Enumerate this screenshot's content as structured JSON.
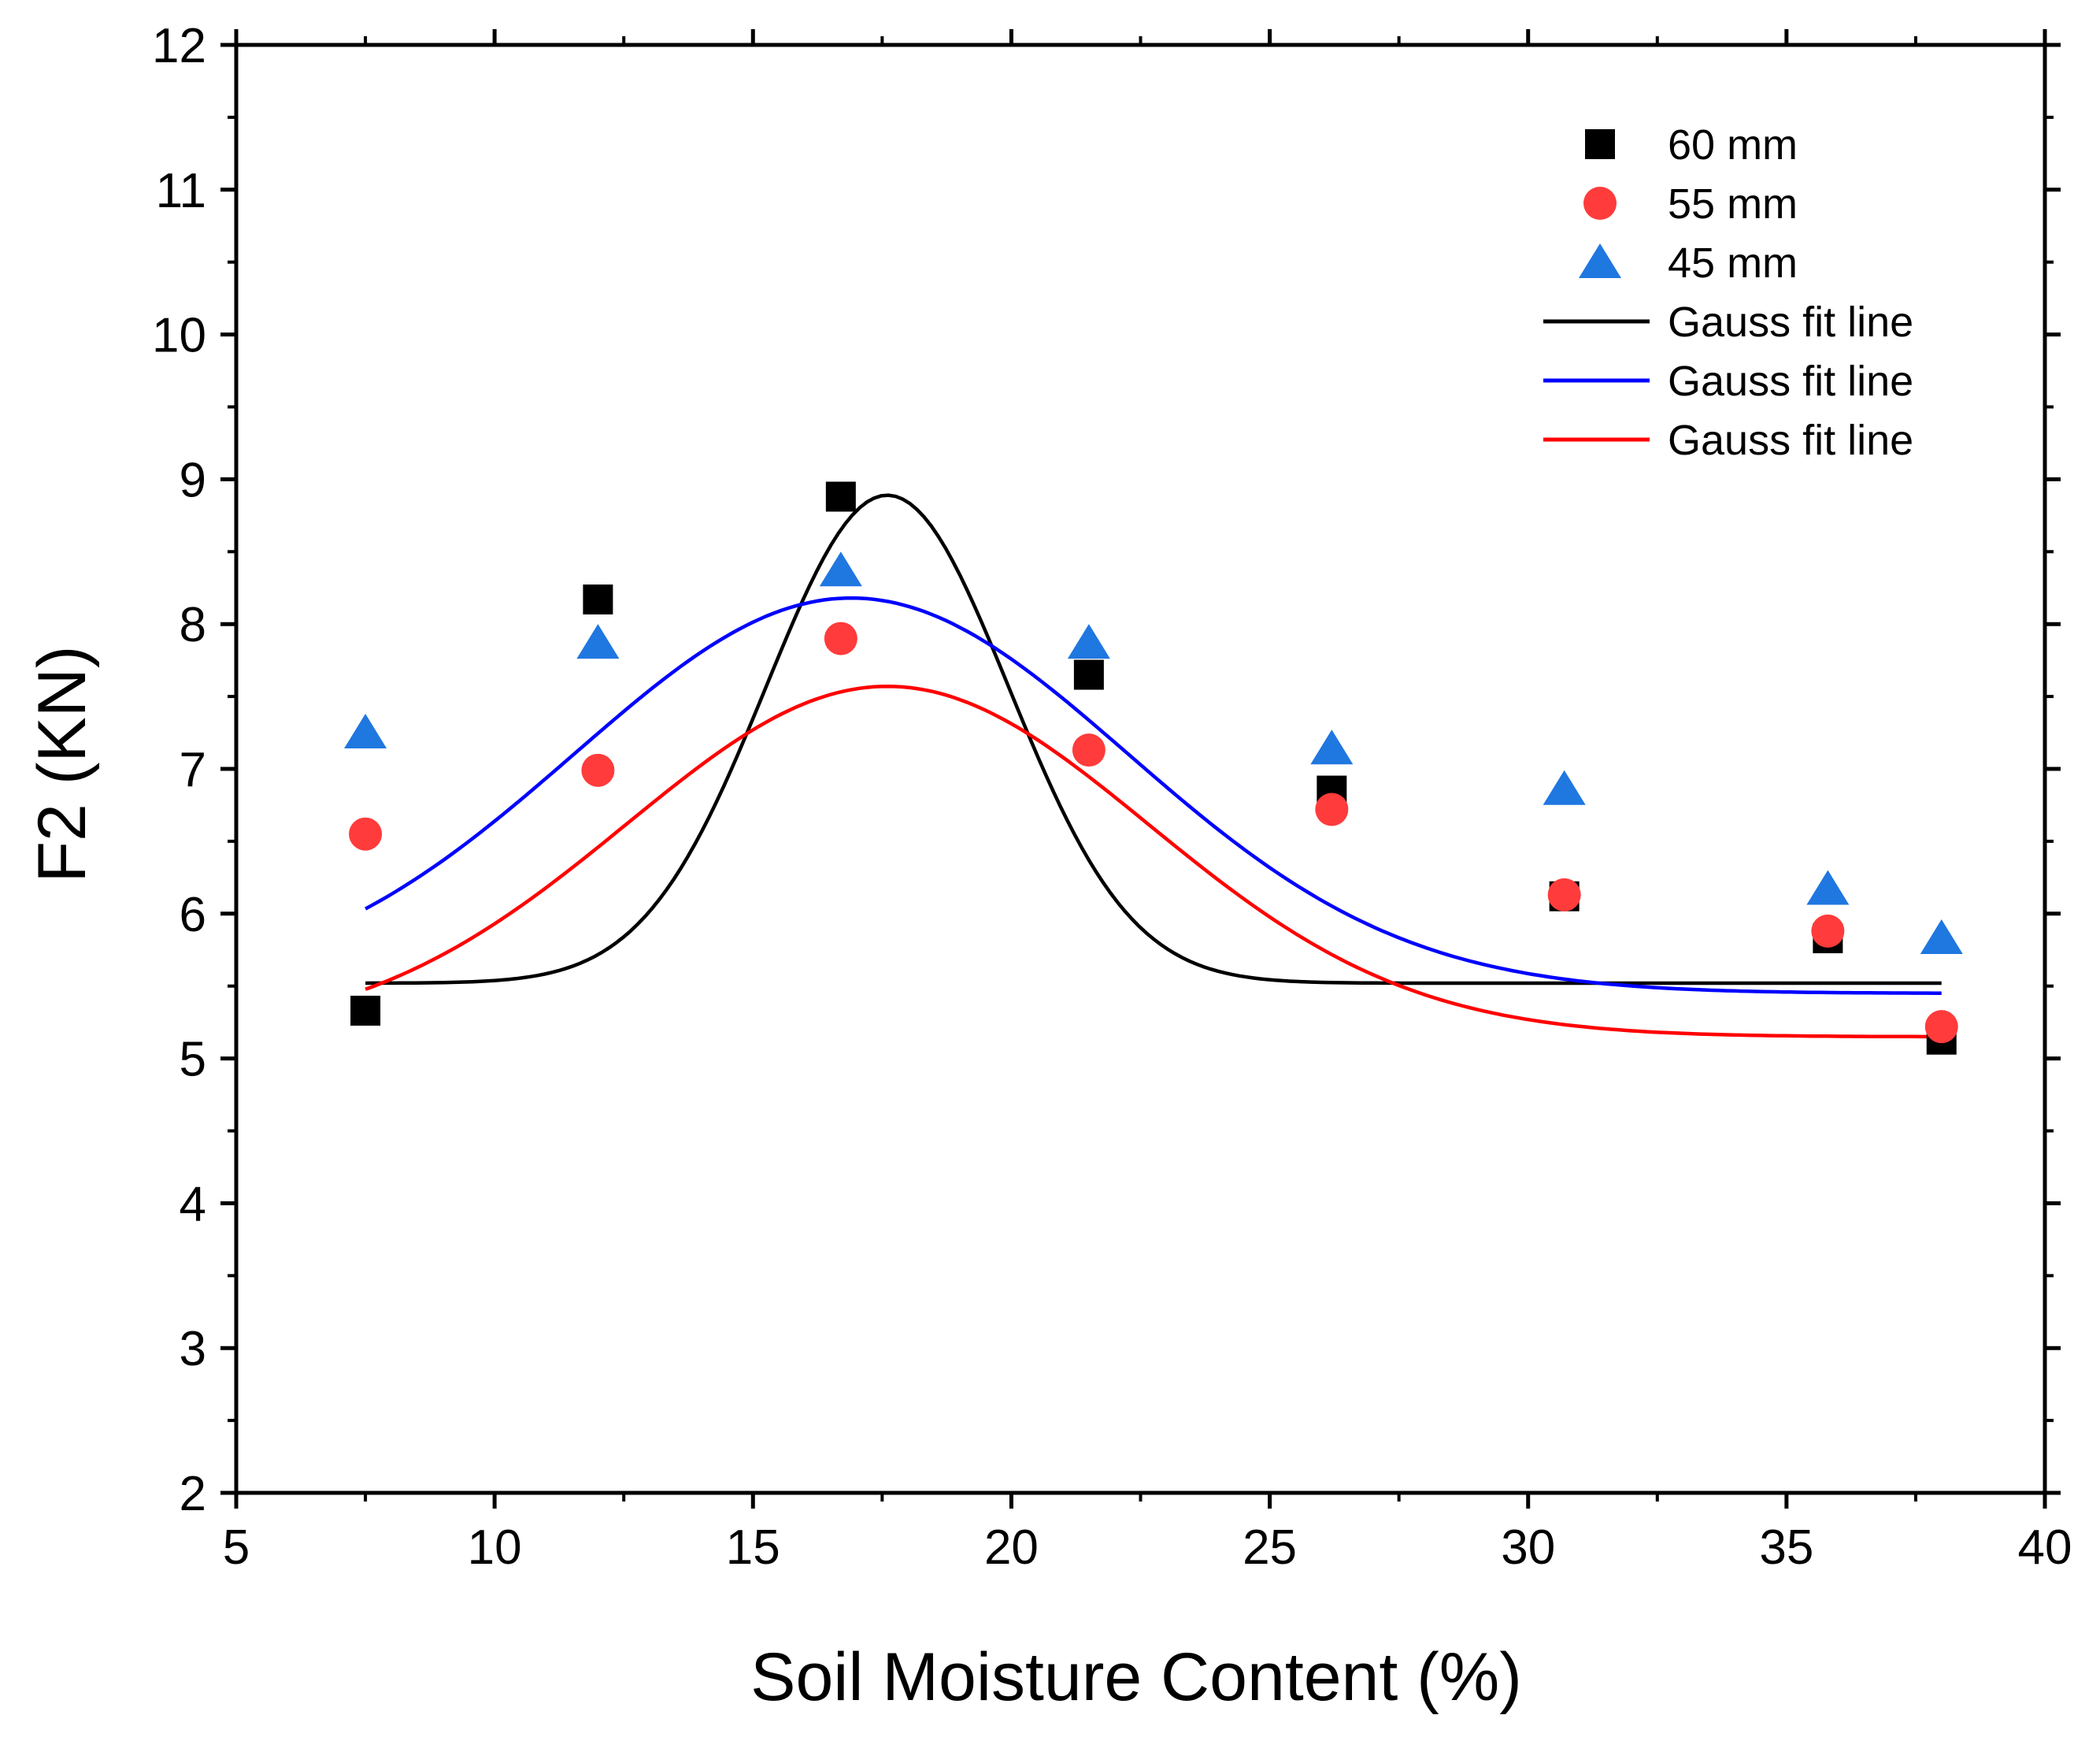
{
  "chart_data": {
    "type": "scatter",
    "title": "",
    "xlabel": "Soil Moisture Content (%)",
    "ylabel": "F2 (KN)",
    "xlim": [
      5,
      40
    ],
    "ylim": [
      2,
      12
    ],
    "x_ticks": [
      "5",
      "10",
      "15",
      "20",
      "25",
      "30",
      "35",
      "40"
    ],
    "y_ticks": [
      "2",
      "3",
      "4",
      "5",
      "6",
      "7",
      "8",
      "9",
      "10",
      "11",
      "12"
    ],
    "x_tick_values": [
      5,
      10,
      15,
      20,
      25,
      30,
      35,
      40
    ],
    "y_tick_values": [
      2,
      3,
      4,
      5,
      6,
      7,
      8,
      9,
      10,
      11,
      12
    ],
    "legend_position": "top-right",
    "series": [
      {
        "name": "60 mm",
        "marker": "square",
        "color": "#000000",
        "x": [
          7.5,
          12.0,
          16.7,
          21.5,
          26.2,
          30.7,
          35.8,
          38.0
        ],
        "values": [
          5.33,
          8.17,
          8.88,
          7.65,
          6.85,
          6.12,
          5.83,
          5.13
        ]
      },
      {
        "name": "55 mm",
        "marker": "circle",
        "color": "#ff3b3b",
        "x": [
          7.5,
          12.0,
          16.7,
          21.5,
          26.2,
          30.7,
          35.8,
          38.0
        ],
        "values": [
          6.55,
          6.99,
          7.9,
          7.13,
          6.72,
          6.13,
          5.88,
          5.22
        ]
      },
      {
        "name": "45 mm",
        "marker": "triangle",
        "color": "#1f77e0",
        "x": [
          7.5,
          12.0,
          16.7,
          21.5,
          26.2,
          30.7,
          35.8,
          38.0
        ],
        "values": [
          7.25,
          7.87,
          8.37,
          7.87,
          7.14,
          6.86,
          6.17,
          5.83
        ]
      }
    ],
    "fit_lines": [
      {
        "name": "Gauss fit line",
        "color": "#000000",
        "model": "gauss",
        "y0": 5.52,
        "A": 3.37,
        "xc": 17.6,
        "w": 4.7,
        "x_range": [
          7.5,
          38.0
        ]
      },
      {
        "name": "Gauss fit line",
        "color": "#0000ff",
        "model": "gauss",
        "y0": 5.45,
        "A": 2.73,
        "xc": 16.9,
        "w": 10.7,
        "x_range": [
          7.5,
          38.0
        ]
      },
      {
        "name": "Gauss fit line",
        "color": "#ff0000",
        "model": "gauss",
        "y0": 5.15,
        "A": 2.42,
        "xc": 17.6,
        "w": 10.1,
        "x_range": [
          7.5,
          38.0
        ]
      }
    ]
  }
}
